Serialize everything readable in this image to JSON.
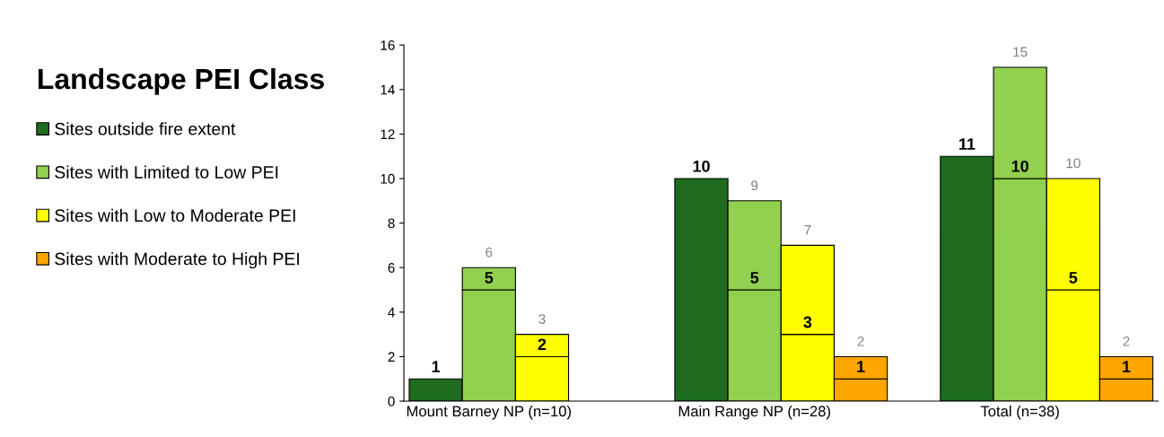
{
  "chart_data": {
    "type": "bar",
    "stacked": true,
    "legend_title": "Landscape PEI Class",
    "legend": "left",
    "categories": [
      null,
      "Mount Barney NP (n=10)",
      null,
      null,
      null,
      null,
      "Main Range NP (n=28)",
      null,
      null,
      null,
      null,
      "Total (n=38)",
      null,
      null
    ],
    "ylim": [
      0,
      16
    ],
    "yticks": [
      0,
      2,
      4,
      6,
      8,
      10,
      12,
      14,
      16
    ],
    "grid": false,
    "series": [
      {
        "name": "Sites outside fire extent",
        "color": "#1f6b1f",
        "values": [
          1,
          null,
          null,
          null,
          null,
          10,
          null,
          null,
          null,
          null,
          11,
          null,
          null,
          null
        ],
        "value_labels": [
          "1",
          null,
          null,
          null,
          null,
          "10",
          null,
          null,
          null,
          null,
          "11",
          null,
          null,
          null
        ]
      },
      {
        "color": "#92d050",
        "values": [
          null,
          5,
          null,
          null,
          null,
          null,
          5,
          null,
          null,
          null,
          null,
          10,
          null,
          null
        ],
        "value_labels": [
          null,
          "5",
          null,
          null,
          null,
          null,
          "5",
          null,
          null,
          null,
          null,
          "10",
          null,
          null
        ]
      },
      {
        "name": "Sites with Limited to Low PEI",
        "color": "#92d050",
        "values": [
          null,
          1,
          null,
          null,
          null,
          null,
          4,
          null,
          null,
          null,
          null,
          5,
          null,
          null
        ]
      },
      {
        "color": "#ffff00",
        "values": [
          null,
          null,
          2,
          null,
          null,
          null,
          null,
          3,
          null,
          null,
          null,
          null,
          5,
          null
        ],
        "value_labels": [
          null,
          null,
          "2",
          null,
          null,
          null,
          null,
          "3",
          null,
          null,
          null,
          null,
          "5",
          null
        ]
      },
      {
        "name": "Sites with Low to Moderate PEI",
        "color": "#ffff00",
        "values": [
          null,
          null,
          1,
          null,
          null,
          null,
          null,
          4,
          null,
          null,
          null,
          null,
          5,
          null
        ]
      },
      {
        "color": "#ffa500",
        "values": [
          null,
          null,
          null,
          null,
          null,
          null,
          null,
          null,
          1,
          null,
          null,
          null,
          null,
          1
        ],
        "value_labels": [
          null,
          null,
          null,
          null,
          null,
          null,
          null,
          null,
          "1",
          null,
          null,
          null,
          null,
          "1"
        ]
      },
      {
        "name": "Sites with Moderate to High PEI",
        "color": "#ffa500",
        "values": [
          null,
          null,
          null,
          null,
          null,
          null,
          null,
          null,
          1,
          null,
          null,
          null,
          null,
          1
        ]
      }
    ],
    "totals": [
      null,
      "6",
      "3",
      null,
      null,
      null,
      "9",
      "7",
      "2",
      null,
      null,
      "15",
      "10",
      "2"
    ]
  }
}
